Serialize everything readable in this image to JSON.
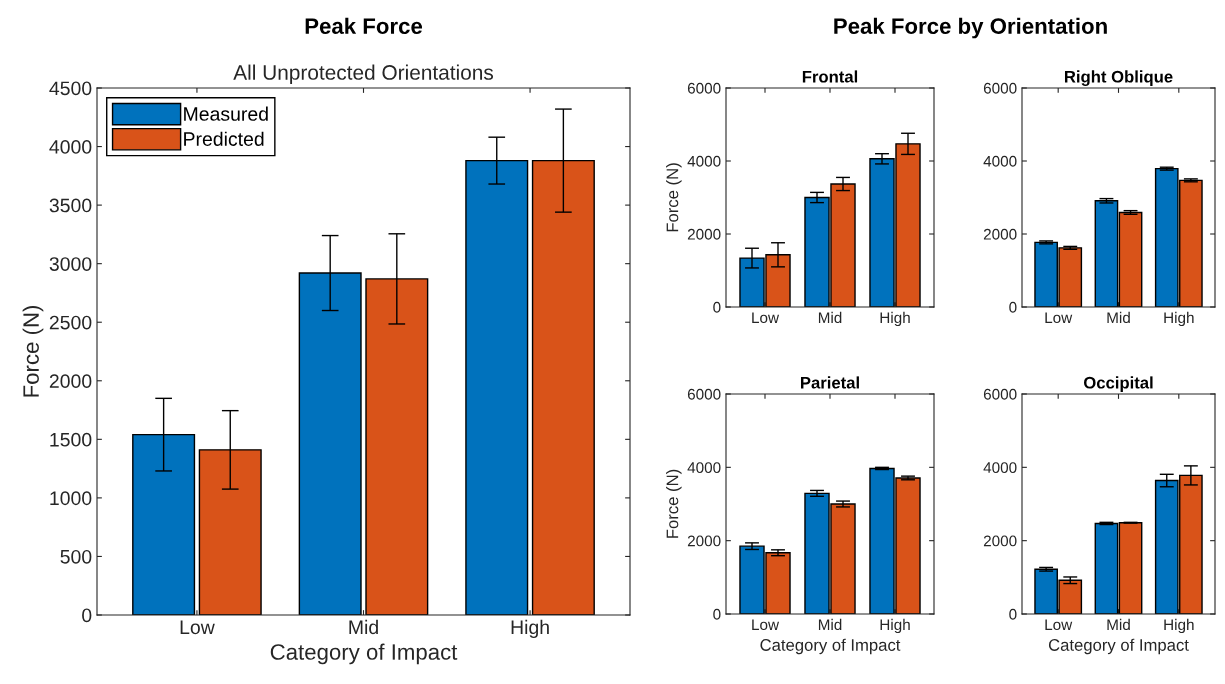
{
  "chart_data": [
    {
      "type": "bar",
      "title": "Peak Force",
      "subtitle": "All Unprotected Orientations",
      "xlabel": "Category of Impact",
      "ylabel": "Force (N)",
      "categories": [
        "Low",
        "Mid",
        "High"
      ],
      "ylim": [
        0,
        4500
      ],
      "yticks": [
        0,
        500,
        1000,
        1500,
        2000,
        2500,
        3000,
        3500,
        4000,
        4500
      ],
      "legend": "top left",
      "grid": false,
      "series": [
        {
          "name": "Measured",
          "color": "#0072bd",
          "values": [
            1540,
            2920,
            3880
          ],
          "errors": [
            310,
            320,
            200
          ]
        },
        {
          "name": "Predicted",
          "color": "#d95319",
          "values": [
            1410,
            2870,
            3880
          ],
          "errors": [
            335,
            385,
            440
          ]
        }
      ]
    },
    {
      "type": "bar",
      "title": "Frontal",
      "ylabel": "Force (N)",
      "annotations": [
        "Peak Force by Orientation"
      ],
      "categories": [
        "Low",
        "Mid",
        "High"
      ],
      "ylim": [
        0,
        6000
      ],
      "yticks": [
        0,
        2000,
        4000,
        6000
      ],
      "grid": false,
      "series": [
        {
          "color": "#0072bd",
          "values": [
            1340,
            3000,
            4060
          ],
          "errors": [
            270,
            140,
            140
          ]
        },
        {
          "color": "#d95319",
          "values": [
            1430,
            3370,
            4470
          ],
          "errors": [
            330,
            180,
            290
          ]
        }
      ]
    },
    {
      "type": "bar",
      "title": "Right Oblique",
      "categories": [
        "Low",
        "Mid",
        "High"
      ],
      "ylim": [
        0,
        6000
      ],
      "yticks": [
        0,
        2000,
        4000,
        6000
      ],
      "grid": false,
      "series": [
        {
          "color": "#0072bd",
          "values": [
            1770,
            2910,
            3790
          ],
          "errors": [
            40,
            60,
            40
          ]
        },
        {
          "color": "#d95319",
          "values": [
            1620,
            2590,
            3470
          ],
          "errors": [
            40,
            50,
            40
          ]
        }
      ]
    },
    {
      "type": "bar",
      "title": "Parietal",
      "xlabel": "Category of Impact",
      "ylabel": "Force (N)",
      "categories": [
        "Low",
        "Mid",
        "High"
      ],
      "ylim": [
        0,
        6000
      ],
      "yticks": [
        0,
        2000,
        4000,
        6000
      ],
      "grid": false,
      "series": [
        {
          "color": "#0072bd",
          "values": [
            1850,
            3290,
            3970
          ],
          "errors": [
            90,
            80,
            30
          ]
        },
        {
          "color": "#d95319",
          "values": [
            1670,
            3000,
            3710
          ],
          "errors": [
            80,
            80,
            50
          ]
        }
      ]
    },
    {
      "type": "bar",
      "title": "Occipital",
      "xlabel": "Category of Impact",
      "categories": [
        "Low",
        "Mid",
        "High"
      ],
      "ylim": [
        0,
        6000
      ],
      "yticks": [
        0,
        2000,
        4000,
        6000
      ],
      "grid": false,
      "series": [
        {
          "color": "#0072bd",
          "values": [
            1220,
            2470,
            3640
          ],
          "errors": [
            50,
            30,
            170
          ]
        },
        {
          "color": "#d95319",
          "values": [
            920,
            2490,
            3780
          ],
          "errors": [
            90,
            10,
            260
          ]
        }
      ]
    }
  ]
}
